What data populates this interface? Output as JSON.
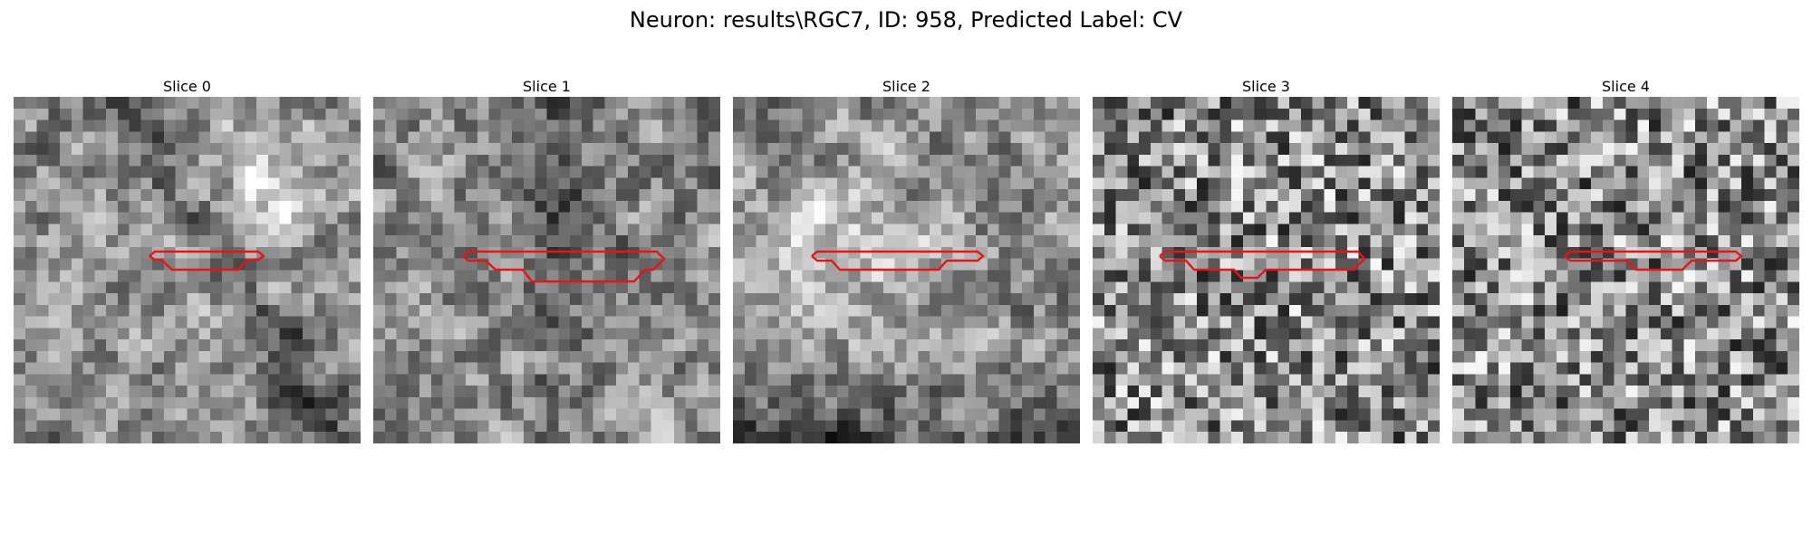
{
  "figure": {
    "title": "Neuron: results\\RGC7, ID: 958, Predicted Label: CV",
    "roi_color": "#e81416"
  },
  "panels": [
    {
      "title": "Slice 0",
      "image": "grayscale noisy microscopy patch, bright region upper right, dark diagonal band",
      "roi": "roi-contour-small"
    },
    {
      "title": "Slice 1",
      "image": "grayscale noisy microscopy patch, dark vertical streak center",
      "roi": "roi-contour-wide"
    },
    {
      "title": "Slice 2",
      "image": "grayscale noisy microscopy patch, bright blob left-center, dark bottom",
      "roi": "roi-contour-wide"
    },
    {
      "title": "Slice 3",
      "image": "grayscale high-noise microscopy patch",
      "roi": "roi-contour-notched"
    },
    {
      "title": "Slice 4",
      "image": "grayscale high-noise microscopy patch",
      "roi": "roi-contour-notched"
    }
  ]
}
